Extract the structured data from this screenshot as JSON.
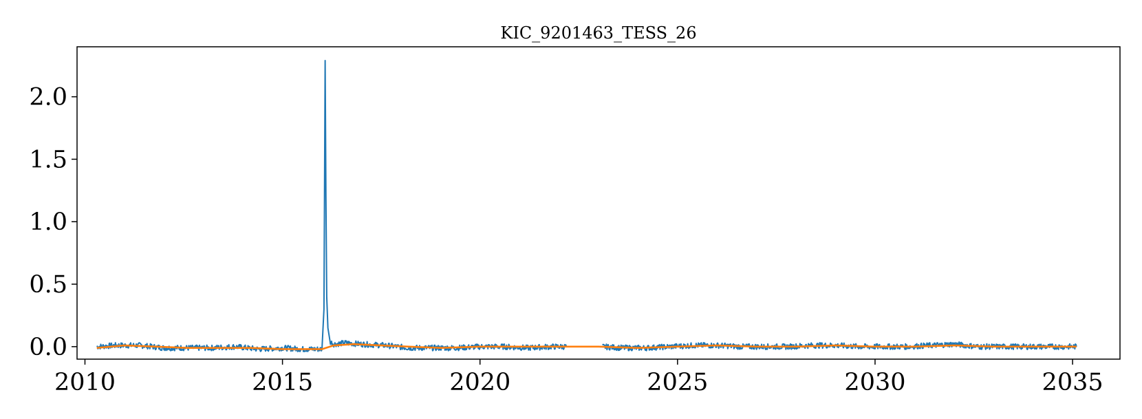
{
  "chart_data": {
    "type": "line",
    "title": "KIC_9201463_TESS_26",
    "xlabel": "",
    "ylabel": "",
    "xlim": [
      2009.8,
      2036.2
    ],
    "ylim": [
      -0.1,
      2.4
    ],
    "xticks": [
      2010,
      2015,
      2020,
      2025,
      2030,
      2035
    ],
    "xtick_labels": [
      "2010",
      "2015",
      "2020",
      "2025",
      "2030",
      "2035"
    ],
    "yticks": [
      0.0,
      0.5,
      1.0,
      1.5,
      2.0
    ],
    "ytick_labels": [
      "0.0",
      "0.5",
      "1.0",
      "1.5",
      "2.0"
    ],
    "grid": false,
    "legend": "none",
    "series": [
      {
        "color": "#1f77b4",
        "style": "noisy flux light curve",
        "segments": [
          {
            "x": [
              2010.3,
              2010.8,
              2011.4,
              2012.0,
              2012.6,
              2013.2,
              2013.8,
              2014.4,
              2015.0,
              2015.5,
              2015.9,
              2016.0,
              2016.05,
              2016.08,
              2016.1,
              2016.12,
              2016.15,
              2016.2,
              2016.3,
              2016.6,
              2017.0,
              2017.6,
              2018.2,
              2018.8,
              2019.4,
              2020.0,
              2020.6,
              2021.2,
              2021.8,
              2022.2
            ],
            "y": [
              0.0,
              0.01,
              0.01,
              -0.01,
              -0.01,
              -0.01,
              0.0,
              -0.02,
              -0.01,
              -0.02,
              -0.02,
              -0.02,
              0.3,
              2.29,
              1.2,
              0.4,
              0.15,
              0.04,
              0.02,
              0.03,
              0.02,
              0.01,
              -0.01,
              -0.01,
              -0.01,
              0.0,
              0.0,
              -0.01,
              0.0,
              0.0
            ]
          },
          {
            "x": [
              2023.1,
              2023.6,
              2024.2,
              2024.8,
              2025.4,
              2026.0,
              2026.6,
              2027.2,
              2027.8,
              2028.4,
              2029.0,
              2029.6,
              2030.2,
              2030.8,
              2031.4,
              2032.0,
              2032.6,
              2033.2,
              2033.8,
              2034.4,
              2035.1
            ],
            "y": [
              0.0,
              -0.01,
              -0.01,
              0.0,
              0.01,
              0.01,
              0.0,
              0.0,
              0.0,
              0.01,
              0.01,
              0.0,
              0.0,
              0.0,
              0.01,
              0.02,
              0.0,
              0.0,
              0.0,
              0.0,
              0.0
            ]
          }
        ]
      },
      {
        "color": "#ff7f0e",
        "style": "smooth trend",
        "segments": [
          {
            "x": [
              2010.3,
              2011.0,
              2011.8,
              2012.6,
              2013.4,
              2014.2,
              2015.0,
              2015.6,
              2016.0,
              2016.3,
              2016.8,
              2017.5,
              2018.2,
              2019.0,
              2020.0,
              2021.0,
              2022.0,
              2023.0,
              2024.0,
              2025.0,
              2026.0,
              2027.0,
              2028.0,
              2029.0,
              2030.0,
              2031.0,
              2032.0,
              2033.0,
              2034.0,
              2035.1
            ],
            "y": [
              -0.01,
              0.01,
              0.0,
              -0.01,
              -0.01,
              -0.01,
              -0.02,
              -0.02,
              -0.02,
              0.01,
              0.02,
              0.01,
              0.0,
              -0.01,
              0.0,
              0.0,
              0.0,
              0.0,
              -0.01,
              0.0,
              0.01,
              0.0,
              0.0,
              0.01,
              0.0,
              0.0,
              0.01,
              0.0,
              0.0,
              0.0
            ]
          }
        ]
      }
    ]
  }
}
